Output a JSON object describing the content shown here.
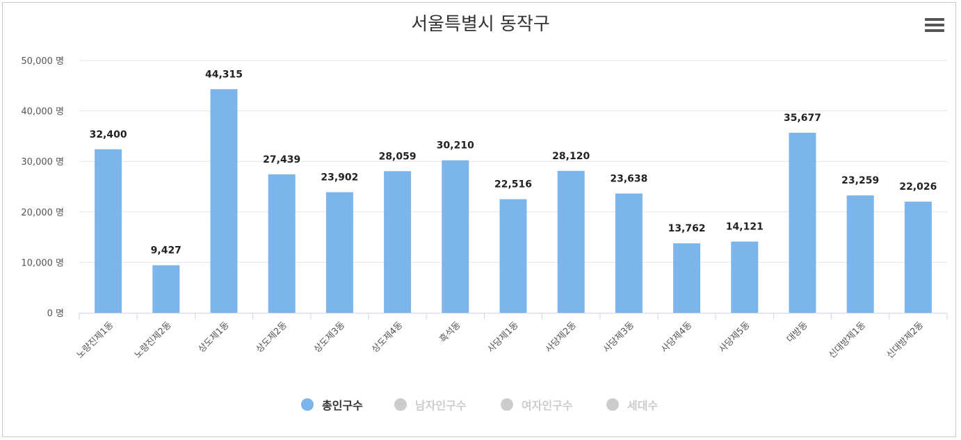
{
  "chart_data": {
    "type": "bar",
    "title": "서울특별시 동작구",
    "xlabel": "",
    "ylabel": "",
    "ylim": [
      0,
      50000
    ],
    "yticks": [
      0,
      10000,
      20000,
      30000,
      40000,
      50000
    ],
    "ytick_labels": [
      "0 명",
      "10,000 명",
      "20,000 명",
      "30,000 명",
      "40,000 명",
      "50,000 명"
    ],
    "grid": true,
    "categories": [
      "노량진제1동",
      "노량진제2동",
      "상도제1동",
      "상도제2동",
      "상도제3동",
      "상도제4동",
      "흑석동",
      "사당제1동",
      "사당제2동",
      "사당제3동",
      "사당제4동",
      "사당제5동",
      "대방동",
      "신대방제1동",
      "신대방제2동"
    ],
    "series": [
      {
        "name": "총인구수",
        "color": "#7cb5ec",
        "values": [
          32400,
          9427,
          44315,
          27439,
          23902,
          28059,
          30210,
          22516,
          28120,
          23638,
          13762,
          14121,
          35677,
          23259,
          22026
        ],
        "labels": [
          "32,400",
          "9,427",
          "44,315",
          "27,439",
          "23,902",
          "28,059",
          "30,210",
          "22,516",
          "28,120",
          "23,638",
          "13,762",
          "14,121",
          "35,677",
          "23,259",
          "22,026"
        ]
      }
    ],
    "legend_position": "bottom-center",
    "legend": [
      {
        "name": "총인구수",
        "active": true,
        "color": "#7cb5ec"
      },
      {
        "name": "남자인구수",
        "active": false,
        "color": "#cccccc"
      },
      {
        "name": "여자인구수",
        "active": false,
        "color": "#cccccc"
      },
      {
        "name": "세대수",
        "active": false,
        "color": "#cccccc"
      }
    ]
  },
  "menu": {
    "icon": "hamburger-menu-icon"
  }
}
